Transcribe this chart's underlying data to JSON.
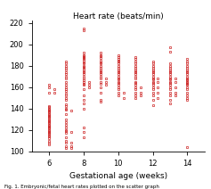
{
  "title": "Heart rate (beats/min)",
  "xlabel": "Gestational age (weeks)",
  "xlim": [
    5.0,
    15.0
  ],
  "ylim": [
    100,
    222
  ],
  "xticks": [
    6,
    8,
    10,
    12,
    14
  ],
  "yticks": [
    100,
    120,
    140,
    160,
    180,
    200,
    220
  ],
  "marker_color": "#cc2222",
  "marker_size": 2.0,
  "marker_edge_width": 0.5,
  "data": {
    "6": [
      106,
      108,
      110,
      112,
      114,
      115,
      116,
      117,
      118,
      119,
      120,
      121,
      122,
      123,
      124,
      125,
      126,
      127,
      128,
      129,
      130,
      131,
      132,
      133,
      134,
      135,
      136,
      137,
      138,
      139,
      140,
      141,
      142,
      155,
      160,
      162
    ],
    "6.3": [
      158,
      155
    ],
    "7": [
      103,
      105,
      108,
      110,
      113,
      117,
      119,
      120,
      122,
      125,
      127,
      130,
      135,
      139,
      140,
      142,
      144,
      148,
      150,
      152,
      154,
      156,
      158,
      160,
      162,
      165,
      168,
      170,
      172,
      174,
      176,
      178,
      180,
      182,
      184
    ],
    "7.3": [
      103,
      105,
      108,
      118,
      138
    ],
    "8": [
      113,
      118,
      122,
      140,
      145,
      148,
      152,
      158,
      162,
      163,
      165,
      166,
      168,
      170,
      172,
      174,
      175,
      176,
      178,
      179,
      180,
      182,
      183,
      185,
      186,
      187,
      188,
      189,
      190,
      192,
      213,
      215
    ],
    "8.3": [
      162,
      165,
      160
    ],
    "9": [
      146,
      148,
      155,
      160,
      163,
      165,
      168,
      170,
      172,
      174,
      175,
      176,
      178,
      180,
      182,
      183,
      185,
      187,
      189,
      190,
      192
    ],
    "9.3": [
      162,
      165,
      168
    ],
    "10": [
      152,
      155,
      158,
      160,
      162,
      164,
      165,
      167,
      168,
      170,
      172,
      174,
      175,
      176,
      178,
      180,
      182,
      184,
      185,
      186,
      188,
      190
    ],
    "10.3": [
      150,
      155
    ],
    "11": [
      150,
      152,
      155,
      158,
      160,
      162,
      164,
      165,
      168,
      170,
      172,
      174,
      175,
      176,
      178,
      180,
      182,
      184,
      186,
      188
    ],
    "11.3": [
      155,
      160,
      152
    ],
    "12": [
      143,
      148,
      152,
      155,
      158,
      160,
      162,
      164,
      165,
      167,
      168,
      170,
      172,
      174,
      175,
      176,
      178,
      180,
      182,
      184
    ],
    "12.3": [
      150,
      155,
      160,
      165,
      168
    ],
    "13": [
      145,
      148,
      152,
      155,
      158,
      160,
      162,
      164,
      165,
      167,
      168,
      170,
      172,
      174,
      175,
      176,
      178,
      180,
      182,
      193,
      197
    ],
    "13.3": [
      152,
      155,
      160,
      165,
      168
    ],
    "14": [
      104,
      148,
      150,
      152,
      155,
      158,
      160,
      162,
      163,
      164,
      165,
      166,
      167,
      168,
      170,
      172,
      174,
      175,
      176,
      178,
      180,
      182,
      184,
      186
    ]
  }
}
